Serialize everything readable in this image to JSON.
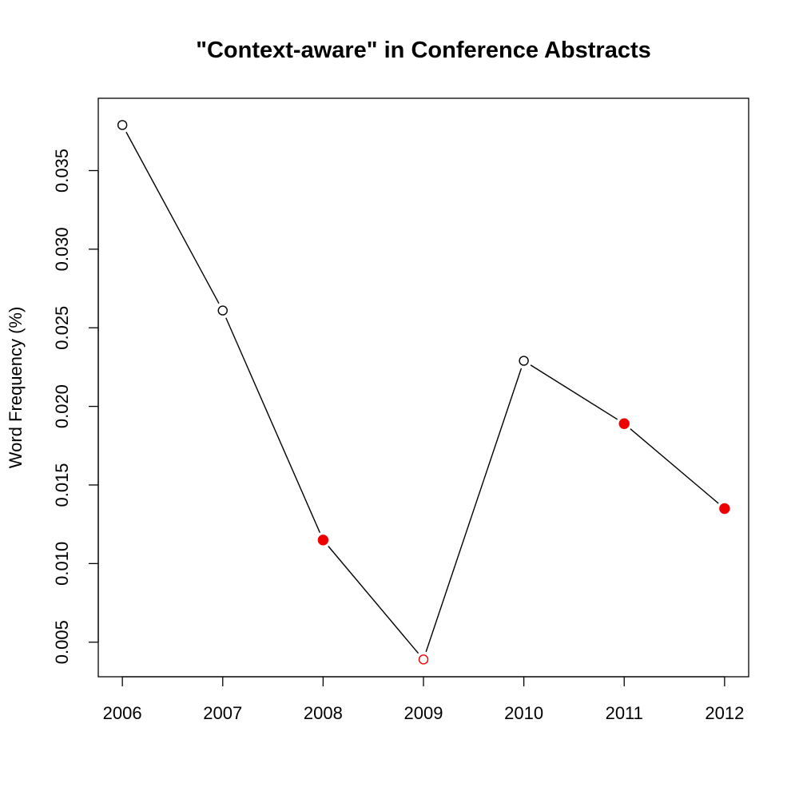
{
  "chart_data": {
    "type": "line",
    "title": "\"Context-aware\" in Conference Abstracts",
    "xlabel": "",
    "ylabel": "Word Frequency (%)",
    "x": [
      2006,
      2007,
      2008,
      2009,
      2010,
      2011,
      2012
    ],
    "x_tick_labels": [
      "2006",
      "2007",
      "2008",
      "2009",
      "2010",
      "2011",
      "2012"
    ],
    "y_ticks": [
      0.005,
      0.01,
      0.015,
      0.02,
      0.025,
      0.03,
      0.035
    ],
    "y_tick_labels": [
      "0.005",
      "0.010",
      "0.015",
      "0.020",
      "0.025",
      "0.030",
      "0.035"
    ],
    "xlim": [
      2005.76,
      2012.24
    ],
    "ylim": [
      0.0028,
      0.0396
    ],
    "grid": false,
    "series": [
      {
        "values": [
          0.0379,
          0.0261,
          0.0115,
          0.0039,
          0.0229,
          0.0189,
          0.0135
        ],
        "line_color": "#000000",
        "marker_styles": [
          "open",
          "open",
          "filled",
          "open",
          "open",
          "filled",
          "filled"
        ],
        "marker_colors": [
          "#000000",
          "#000000",
          "#ee0000",
          "#ee0000",
          "#000000",
          "#ee0000",
          "#ee0000"
        ]
      }
    ]
  }
}
